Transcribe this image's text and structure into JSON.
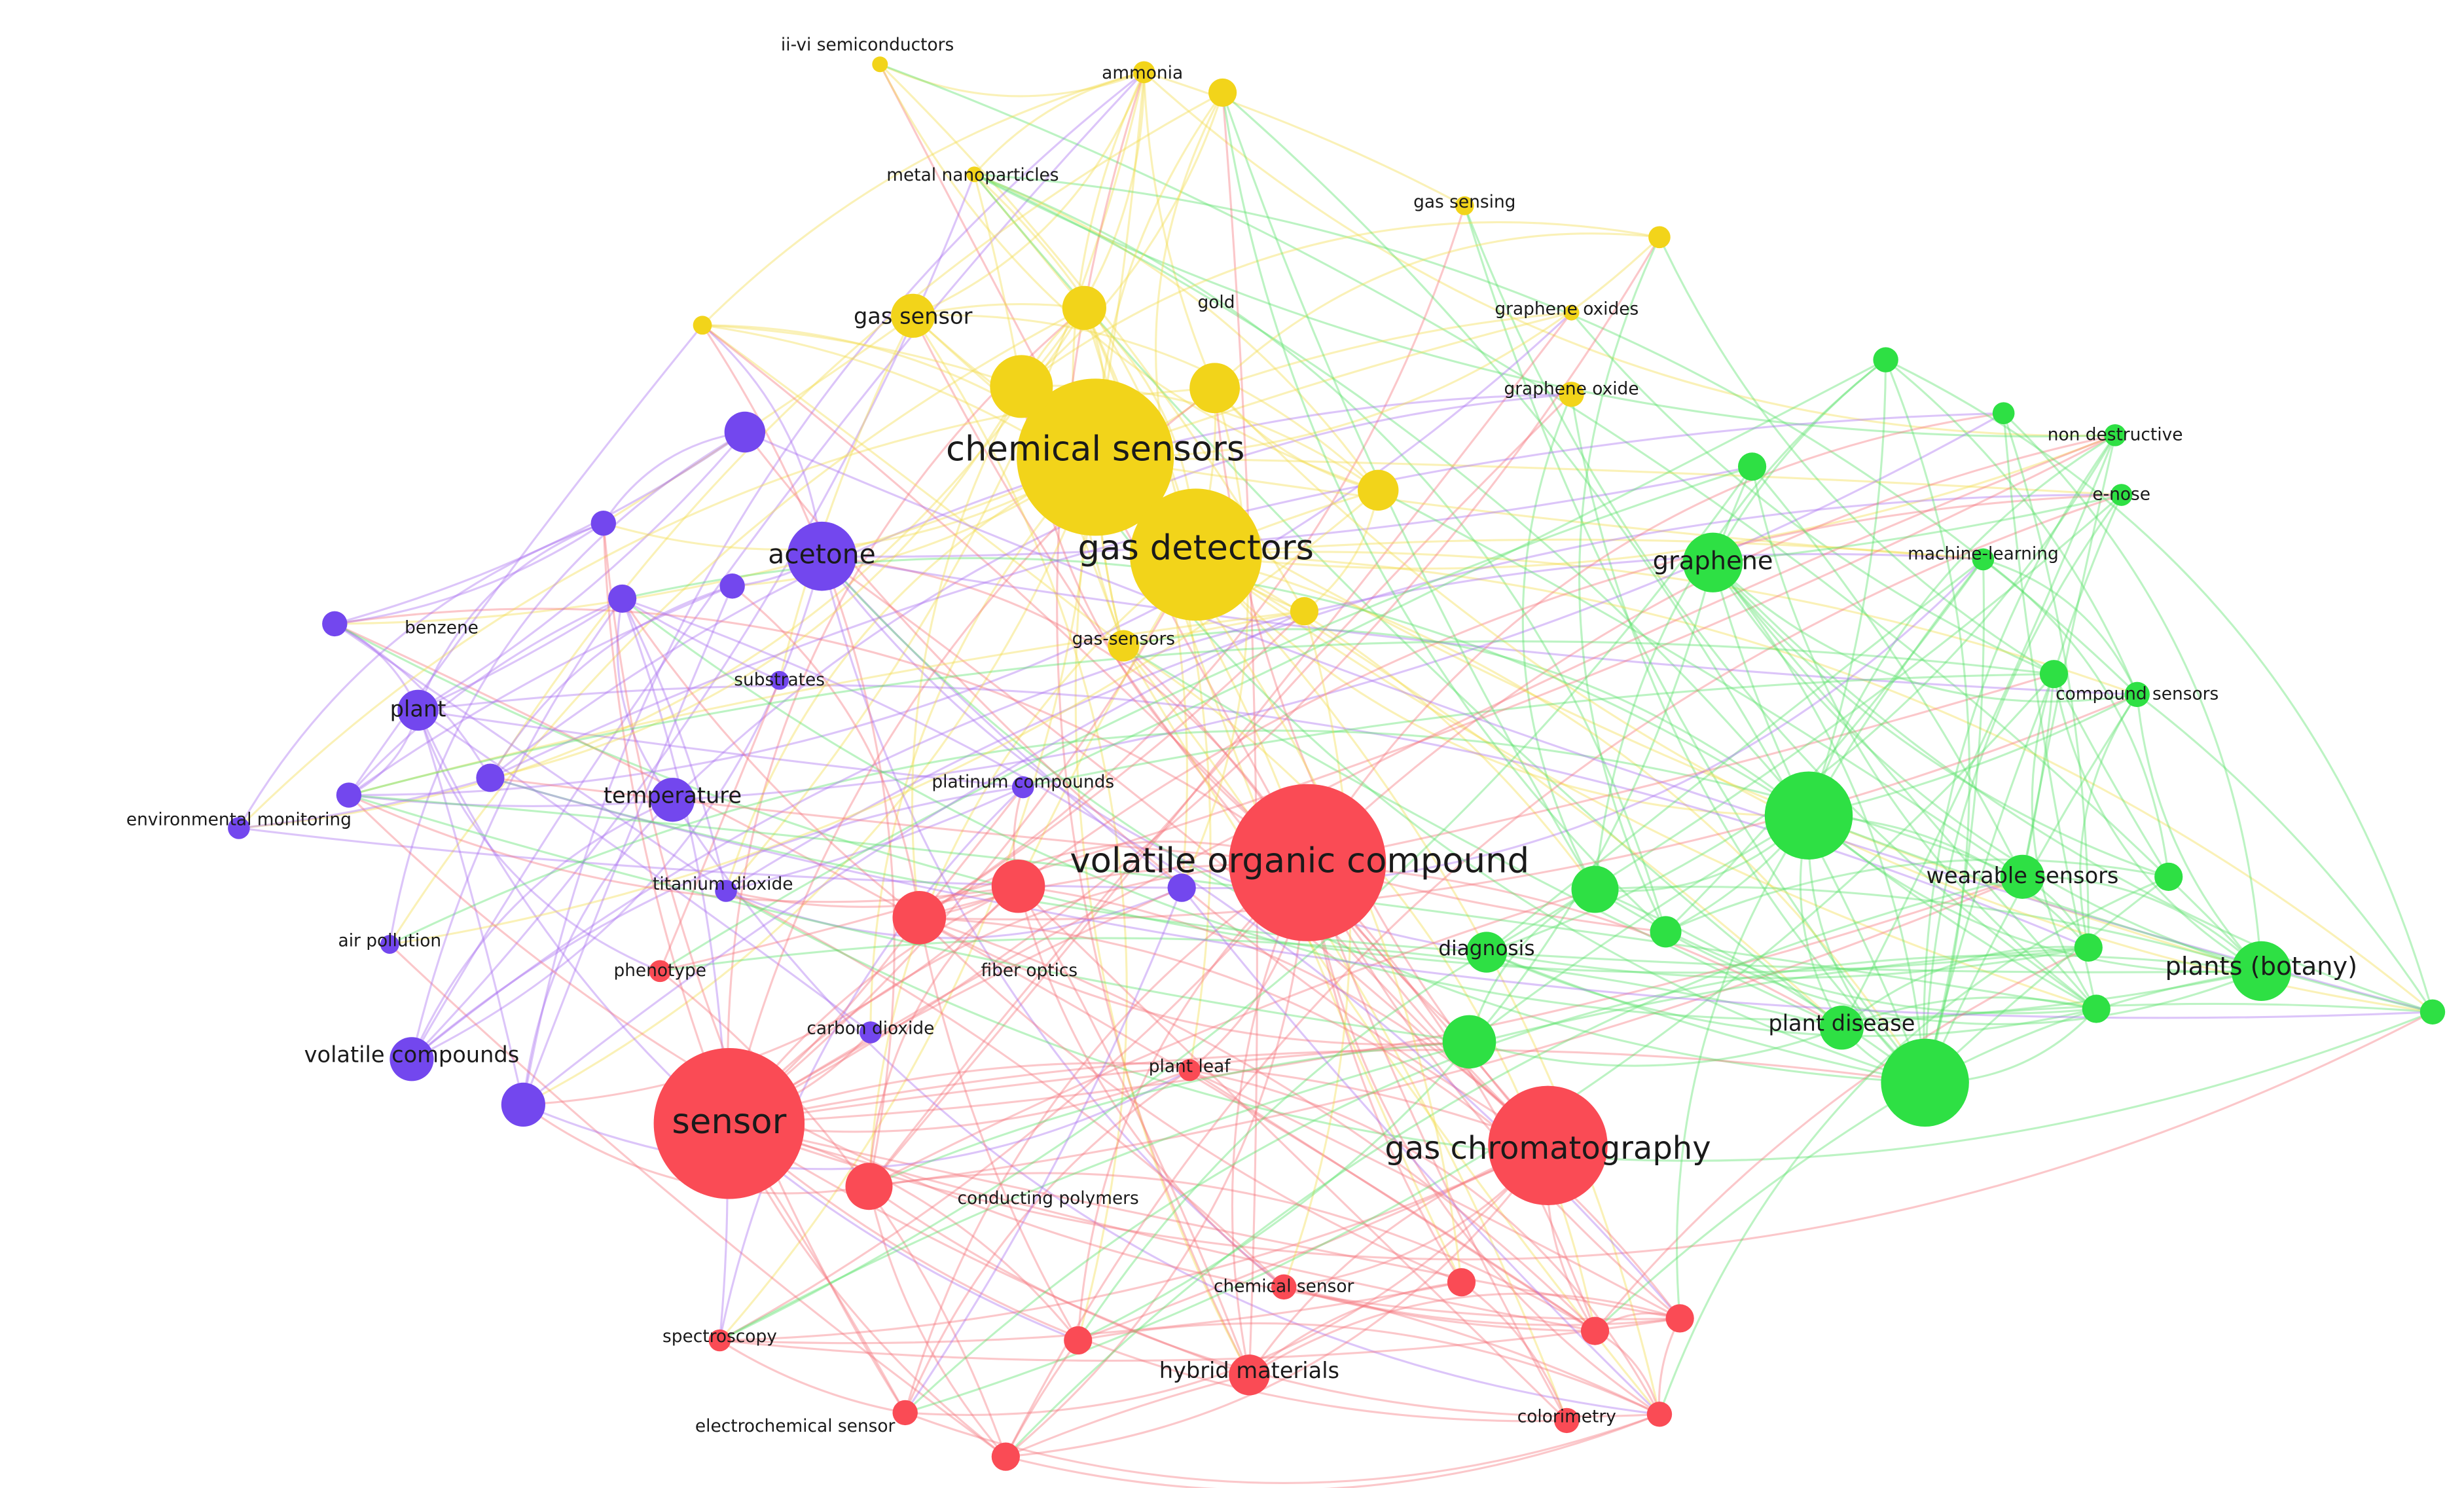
{
  "nodes": [
    {
      "label": "ii-vi semiconductors"
    },
    {
      "label": "ammonia"
    },
    {
      "label": "metal nanoparticles"
    },
    {
      "label": "gas sensing"
    },
    {
      "label": "gas sensor"
    },
    {
      "label": "gold"
    },
    {
      "label": "graphene oxides"
    },
    {
      "label": "graphene oxide"
    },
    {
      "label": "chemical sensors"
    },
    {
      "label": "gas detectors"
    },
    {
      "label": "gas-sensors"
    },
    {
      "label": "acetone"
    },
    {
      "label": "benzene"
    },
    {
      "label": "plant"
    },
    {
      "label": "substrates"
    },
    {
      "label": "environmental monitoring"
    },
    {
      "label": "temperature"
    },
    {
      "label": "titanium dioxide"
    },
    {
      "label": "air pollution"
    },
    {
      "label": "volatile compounds"
    },
    {
      "label": "platinum compounds"
    },
    {
      "label": "carbon dioxide"
    },
    {
      "label": "volatile organic compound"
    },
    {
      "label": "sensor"
    },
    {
      "label": "gas chromatography"
    },
    {
      "label": "phenotype"
    },
    {
      "label": "fiber optics"
    },
    {
      "label": "plant leaf"
    },
    {
      "label": "conducting polymers"
    },
    {
      "label": "chemical sensor"
    },
    {
      "label": "spectroscopy"
    },
    {
      "label": "hybrid materials"
    },
    {
      "label": "electrochemical sensor"
    },
    {
      "label": "colorimetry"
    },
    {
      "label": "non destructive"
    },
    {
      "label": "e-nose"
    },
    {
      "label": "graphene"
    },
    {
      "label": "machine-learning"
    },
    {
      "label": "compound sensors"
    },
    {
      "label": "wearable sensors"
    },
    {
      "label": "diagnosis"
    },
    {
      "label": "plants (botany)"
    },
    {
      "label": "plant disease"
    }
  ]
}
